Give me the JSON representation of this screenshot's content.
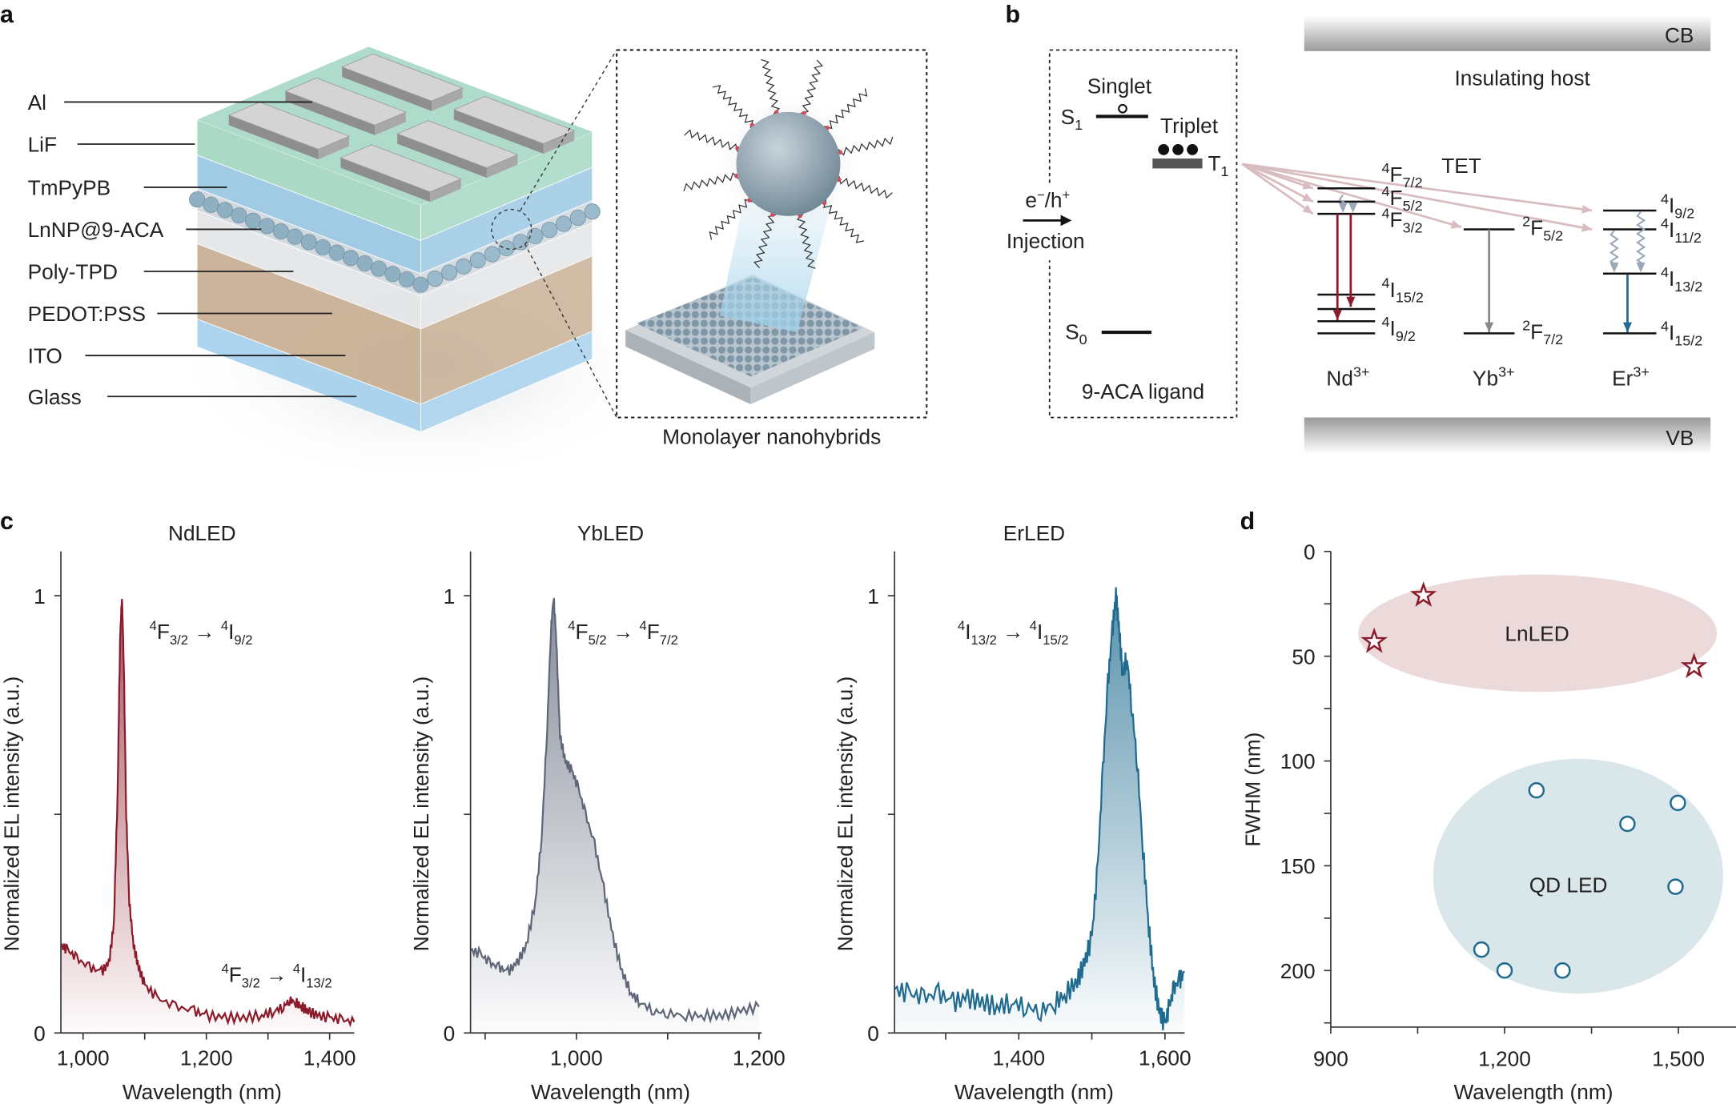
{
  "panel_labels": {
    "a": "a",
    "b": "b",
    "c": "c",
    "d": "d"
  },
  "panel_a": {
    "layers": [
      "Al",
      "LiF",
      "TmPyPB",
      "LnNP@9-ACA",
      "Poly-TPD",
      "PEDOT:PSS",
      "ITO",
      "Glass"
    ],
    "inset_caption": "Monolayer nanohybrids",
    "colors": {
      "lif": "#a6d8c4",
      "tmpypb": "#9cc9e4",
      "polytpd": "#e4e6e8",
      "pedot_ito": "#c9b196",
      "glass": "#a8d2ee",
      "al": "#d4d4d4"
    }
  },
  "panel_b": {
    "singlet": "Singlet",
    "triplet": "Triplet",
    "s1": {
      "base": "S",
      "sub": "1"
    },
    "t1": {
      "base": "T",
      "sub": "1"
    },
    "s0": {
      "base": "S",
      "sub": "0"
    },
    "injection_carriers": {
      "e": "e",
      "e_sup": "−",
      "h": "/h",
      "h_sup": "+"
    },
    "injection": "Injection",
    "ligand": "9-ACA ligand",
    "cb": "CB",
    "vb": "VB",
    "host": "Insulating host",
    "tet": "TET",
    "ions": [
      {
        "base": "Nd",
        "sup": "3+"
      },
      {
        "base": "Yb",
        "sup": "3+"
      },
      {
        "base": "Er",
        "sup": "3+"
      }
    ],
    "levels": {
      "nd": [
        {
          "sup": "4",
          "base": "F",
          "sub": "7/2"
        },
        {
          "sup": "4",
          "base": "F",
          "sub": "5/2"
        },
        {
          "sup": "4",
          "base": "F",
          "sub": "3/2"
        },
        {
          "sup": "4",
          "base": "I",
          "sub": "15/2"
        },
        {
          "sup": "4",
          "base": "I",
          "sub": "9/2"
        }
      ],
      "yb": [
        {
          "sup": "2",
          "base": "F",
          "sub": "5/2"
        },
        {
          "sup": "2",
          "base": "F",
          "sub": "7/2"
        }
      ],
      "er": [
        {
          "sup": "4",
          "base": "I",
          "sub": "9/2"
        },
        {
          "sup": "4",
          "base": "I",
          "sub": "11/2"
        },
        {
          "sup": "4",
          "base": "I",
          "sub": "13/2"
        },
        {
          "sup": "4",
          "base": "I",
          "sub": "15/2"
        }
      ]
    },
    "colors": {
      "tet": "#d8bcc0",
      "nd": "#8b1a2b",
      "yb": "#888888",
      "er": "#1f6b8f",
      "relax": "#9aa8b8"
    }
  },
  "chart_data": [
    {
      "type": "area",
      "title": "NdLED",
      "xlabel": "Wavelength (nm)",
      "ylabel": "Normalized EL intensity (a.u.)",
      "xlim": [
        964,
        1440
      ],
      "ylim": [
        0,
        1.1
      ],
      "xticks": [
        1000,
        1200,
        1400
      ],
      "xtick_labels": [
        "1,000",
        "1,200",
        "1,400"
      ],
      "yticks": [
        0,
        0.5,
        1
      ],
      "ytick_labels": [
        "0",
        "",
        "1"
      ],
      "color": "#8b1a2b",
      "annotations": [
        {
          "from": {
            "sup": "4",
            "base": "F",
            "sub": "3/2"
          },
          "to": {
            "sup": "4",
            "base": "I",
            "sub": "9/2"
          }
        },
        {
          "from": {
            "sup": "4",
            "base": "F",
            "sub": "3/2"
          },
          "to": {
            "sup": "4",
            "base": "I",
            "sub": "13/2"
          }
        }
      ],
      "x": [
        964,
        975,
        990,
        1010,
        1030,
        1042,
        1050,
        1056,
        1060,
        1063,
        1066,
        1070,
        1075,
        1082,
        1090,
        1100,
        1120,
        1150,
        1180,
        1200,
        1230,
        1260,
        1290,
        1310,
        1325,
        1335,
        1345,
        1355,
        1365,
        1380,
        1400,
        1420,
        1440
      ],
      "y": [
        0.2,
        0.19,
        0.17,
        0.15,
        0.14,
        0.16,
        0.25,
        0.55,
        0.9,
        1.0,
        0.85,
        0.5,
        0.3,
        0.2,
        0.15,
        0.11,
        0.08,
        0.06,
        0.05,
        0.04,
        0.035,
        0.035,
        0.04,
        0.05,
        0.06,
        0.075,
        0.07,
        0.06,
        0.05,
        0.04,
        0.035,
        0.03,
        0.025
      ]
    },
    {
      "type": "area",
      "title": "YbLED",
      "xlabel": "Wavelength (nm)",
      "ylabel": "Normalized EL intensity (a.u.)",
      "xlim": [
        884,
        1203
      ],
      "ylim": [
        0,
        1.1
      ],
      "xticks": [
        1000,
        1200
      ],
      "xtick_labels": [
        "1,000",
        "1,200"
      ],
      "yticks": [
        0,
        0.5,
        1
      ],
      "ytick_labels": [
        "0",
        "",
        "1"
      ],
      "color": "#5e6678",
      "annotations": [
        {
          "from": {
            "sup": "4",
            "base": "F",
            "sub": "5/2"
          },
          "to": {
            "sup": "4",
            "base": "F",
            "sub": "7/2"
          }
        }
      ],
      "x": [
        884,
        895,
        905,
        915,
        925,
        935,
        945,
        955,
        962,
        968,
        972,
        975,
        978,
        982,
        988,
        995,
        1002,
        1010,
        1020,
        1030,
        1040,
        1050,
        1060,
        1070,
        1085,
        1100,
        1120,
        1140,
        1160,
        1180,
        1200
      ],
      "y": [
        0.19,
        0.18,
        0.16,
        0.15,
        0.14,
        0.16,
        0.2,
        0.3,
        0.45,
        0.7,
        0.92,
        1.0,
        0.9,
        0.68,
        0.62,
        0.6,
        0.56,
        0.5,
        0.43,
        0.33,
        0.22,
        0.14,
        0.09,
        0.07,
        0.05,
        0.045,
        0.04,
        0.04,
        0.04,
        0.05,
        0.06
      ]
    },
    {
      "type": "area",
      "title": "ErLED",
      "xlabel": "Wavelength (nm)",
      "ylabel": "Normalized EL intensity (a.u.)",
      "xlim": [
        1230,
        1627
      ],
      "ylim": [
        0,
        1.1
      ],
      "xticks": [
        1400,
        1600
      ],
      "xtick_labels": [
        "1,400",
        "1,600"
      ],
      "yticks": [
        0,
        0.5,
        1
      ],
      "ytick_labels": [
        "0",
        "",
        "1"
      ],
      "color": "#1f6b8f",
      "annotations": [
        {
          "from": {
            "sup": "4",
            "base": "I",
            "sub": "13/2"
          },
          "to": {
            "sup": "4",
            "base": "I",
            "sub": "15/2"
          }
        }
      ],
      "x": [
        1230,
        1250,
        1270,
        1290,
        1310,
        1330,
        1350,
        1370,
        1390,
        1410,
        1430,
        1450,
        1465,
        1480,
        1490,
        1500,
        1508,
        1515,
        1522,
        1528,
        1533,
        1537,
        1542,
        1548,
        1555,
        1562,
        1570,
        1578,
        1585,
        1592,
        1600,
        1606,
        1612,
        1620,
        1627
      ],
      "y": [
        0.1,
        0.09,
        0.08,
        0.09,
        0.07,
        0.08,
        0.07,
        0.06,
        0.07,
        0.06,
        0.05,
        0.07,
        0.09,
        0.12,
        0.16,
        0.22,
        0.38,
        0.6,
        0.8,
        0.92,
        1.0,
        0.93,
        0.82,
        0.86,
        0.74,
        0.62,
        0.42,
        0.24,
        0.12,
        0.05,
        0.02,
        0.06,
        0.1,
        0.12,
        0.14
      ]
    },
    {
      "type": "scatter",
      "xlabel": "Wavelength (nm)",
      "ylabel": "FWHM (nm)",
      "xlim": [
        900,
        1600
      ],
      "ylim": [
        0,
        227
      ],
      "y_inverted": true,
      "xticks": [
        900,
        1050,
        1200,
        1350,
        1500
      ],
      "xtick_labels": [
        "900",
        "",
        "1,200",
        "",
        "1,500"
      ],
      "yticks": [
        0,
        25,
        50,
        75,
        100,
        125,
        150,
        175,
        200,
        225
      ],
      "ytick_labels": [
        "0",
        "",
        "50",
        "",
        "100",
        "",
        "150",
        "",
        "200",
        ""
      ],
      "series": [
        {
          "name": "LnLED",
          "marker": "star",
          "color": "#8b1a2b",
          "region_color": "#ecdada",
          "x": [
            975,
            1060,
            1527
          ],
          "y": [
            43,
            21,
            55
          ]
        },
        {
          "name": "QD LED",
          "marker": "circle",
          "color": "#1f6b8f",
          "region_color": "#d9e6ea",
          "x": [
            1255,
            1412,
            1499,
            1495,
            1160,
            1200,
            1300
          ],
          "y": [
            114,
            130,
            120,
            160,
            190,
            200,
            200
          ]
        }
      ]
    }
  ]
}
